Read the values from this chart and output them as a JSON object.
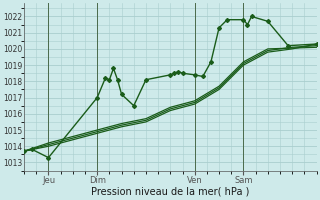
{
  "background_color": "#ceeaea",
  "grid_color": "#aacece",
  "line_color": "#1a5c1a",
  "title": "Pression niveau de la mer( hPa )",
  "xlim": [
    0,
    72
  ],
  "ylim": [
    1012.5,
    1022.8
  ],
  "yticks": [
    1013,
    1014,
    1015,
    1016,
    1017,
    1018,
    1019,
    1020,
    1021,
    1022
  ],
  "xtick_positions": [
    6,
    18,
    42,
    54
  ],
  "xtick_labels": [
    "Jeu",
    "Dim",
    "Ven",
    "Sam"
  ],
  "vlines": [
    6,
    18,
    42,
    54
  ],
  "series": [
    {
      "x": [
        0,
        2,
        6,
        18,
        20,
        21,
        22,
        23,
        24,
        27,
        30,
        36,
        37,
        38,
        39,
        42,
        44,
        46,
        48,
        50,
        54,
        55,
        56,
        60,
        65,
        72
      ],
      "y": [
        1013.7,
        1013.8,
        1013.3,
        1017.0,
        1018.2,
        1018.1,
        1018.8,
        1018.1,
        1017.2,
        1016.5,
        1018.1,
        1018.4,
        1018.5,
        1018.6,
        1018.5,
        1018.4,
        1018.3,
        1019.2,
        1021.3,
        1021.8,
        1021.8,
        1021.5,
        1022.0,
        1021.7,
        1020.2,
        1020.3
      ],
      "marker": "D",
      "markersize": 2.0,
      "linewidth": 1.0,
      "zorder": 5
    },
    {
      "x": [
        0,
        6,
        18,
        24,
        30,
        36,
        42,
        48,
        54,
        60,
        66,
        72
      ],
      "y": [
        1013.7,
        1014.0,
        1014.8,
        1015.2,
        1015.5,
        1016.2,
        1016.6,
        1017.5,
        1019.0,
        1019.8,
        1020.0,
        1020.3
      ],
      "marker": null,
      "linewidth": 0.9,
      "zorder": 3
    },
    {
      "x": [
        0,
        6,
        18,
        24,
        30,
        36,
        42,
        48,
        54,
        60,
        66,
        72
      ],
      "y": [
        1013.7,
        1014.1,
        1014.9,
        1015.3,
        1015.6,
        1016.3,
        1016.7,
        1017.6,
        1019.1,
        1019.9,
        1020.1,
        1020.2
      ],
      "marker": null,
      "linewidth": 0.9,
      "zorder": 3
    },
    {
      "x": [
        0,
        6,
        18,
        24,
        30,
        36,
        42,
        48,
        54,
        60,
        66,
        72
      ],
      "y": [
        1013.7,
        1014.2,
        1015.0,
        1015.4,
        1015.7,
        1016.4,
        1016.8,
        1017.7,
        1019.2,
        1020.0,
        1020.05,
        1020.1
      ],
      "marker": null,
      "linewidth": 0.9,
      "zorder": 3
    }
  ]
}
